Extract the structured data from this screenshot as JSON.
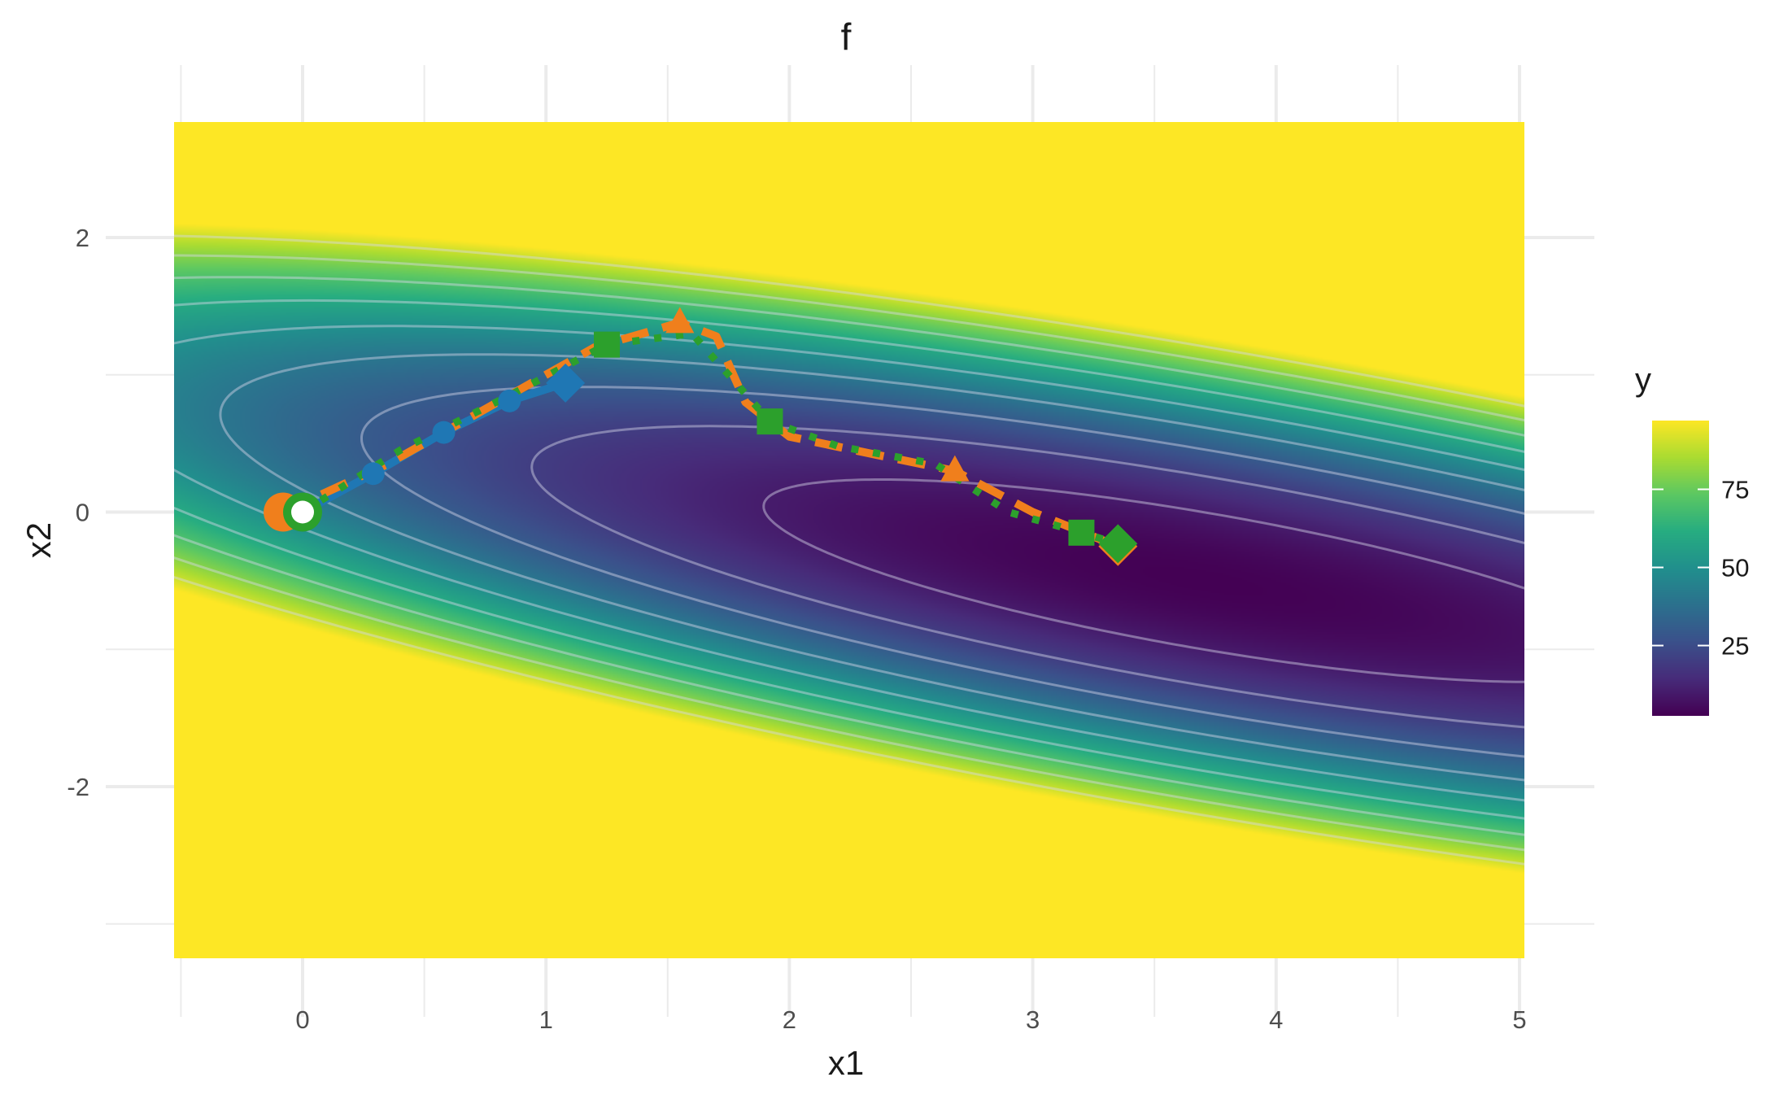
{
  "chart_data": {
    "type": "heatmap",
    "title": "f",
    "xlabel": "x1",
    "ylabel": "x2",
    "xlim": [
      -0.5,
      5.05
    ],
    "ylim": [
      -3.2,
      2.8
    ],
    "x_ticks": [
      0,
      1,
      2,
      3,
      4,
      5
    ],
    "x_tick_labels": [
      "0",
      "1",
      "2",
      "3",
      "4",
      "5"
    ],
    "y_ticks": [
      -2,
      0,
      2
    ],
    "y_tick_labels": [
      "-2",
      "0",
      "2"
    ],
    "grid": true,
    "colormap": "viridis",
    "colorbar": {
      "title": "y",
      "range": [
        2.5,
        97
      ],
      "ticks": [
        25,
        50,
        75
      ],
      "tick_labels": [
        "25",
        "50",
        "75"
      ]
    },
    "contour_levels": [
      10,
      20,
      30,
      40,
      50,
      60,
      70,
      80,
      90
    ],
    "contour_color": "#d8d8e8",
    "series": [
      {
        "color": "#1f77b4",
        "line_style": "solid",
        "marker": "circle",
        "end_marker": "diamond",
        "x": [
          0.0,
          0.29,
          0.58,
          0.85,
          1.08
        ],
        "y": [
          0.0,
          0.28,
          0.58,
          0.81,
          0.94
        ]
      },
      {
        "color": "#f07f1c",
        "line_style": "dashed",
        "marker": "triangle",
        "end_marker": "diamond",
        "x": [
          -0.08,
          0.35,
          0.8,
          1.2,
          1.55,
          1.7,
          1.82,
          2.0,
          2.35,
          2.68,
          3.0,
          3.35
        ],
        "y": [
          0.0,
          0.35,
          0.8,
          1.2,
          1.38,
          1.28,
          0.8,
          0.55,
          0.42,
          0.3,
          0.0,
          -0.25
        ]
      },
      {
        "color": "#2ca02c",
        "line_style": "dotted",
        "marker": "square",
        "end_marker": "diamond",
        "x": [
          0.0,
          0.4,
          0.85,
          1.25,
          1.6,
          1.92,
          2.2,
          2.6,
          2.9,
          3.2,
          3.35
        ],
        "y": [
          0.0,
          0.45,
          0.85,
          1.22,
          1.3,
          0.66,
          0.48,
          0.35,
          0.0,
          -0.15,
          -0.23
        ]
      }
    ]
  }
}
